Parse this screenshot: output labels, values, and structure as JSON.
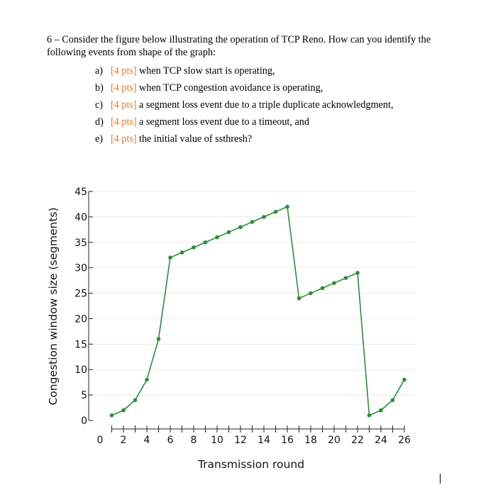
{
  "question": {
    "line1": "6 – Consider the figure below illustrating the operation of TCP Reno.  How can you identify the",
    "line2": "following events from shape of the graph:",
    "items": [
      {
        "letter": "a)",
        "points": "[4 pts]",
        "text": "when TCP slow start is operating,"
      },
      {
        "letter": "b)",
        "points": "[4 pts]",
        "text": "when TCP congestion avoidance is operating,"
      },
      {
        "letter": "c)",
        "points": "[4 pts]",
        "text": "a segment loss event due to a triple duplicate acknowledgment,"
      },
      {
        "letter": "d)",
        "points": "[4 pts]",
        "text": "a segment loss event due to a timeout, and"
      },
      {
        "letter": "e)",
        "points": "[4 pts]",
        "text": "the initial value of ssthresh?"
      }
    ]
  },
  "colors": {
    "accent": "#e07a2a",
    "series": "#2e8b3a",
    "axis": "#222222",
    "grid": "#dddddd"
  },
  "chart_data": {
    "type": "line",
    "title": "",
    "xlabel": "Transmission round",
    "ylabel": "Congestion window size (segments)",
    "xlim": [
      0,
      26
    ],
    "ylim": [
      0,
      45
    ],
    "xticks": [
      0,
      2,
      4,
      6,
      8,
      10,
      12,
      14,
      16,
      18,
      20,
      22,
      24,
      26
    ],
    "yticks": [
      0,
      5,
      10,
      15,
      20,
      25,
      30,
      35,
      40,
      45
    ],
    "grid": true,
    "series": [
      {
        "x": [
          1,
          2,
          3,
          4,
          5,
          6,
          7,
          8,
          9,
          10,
          11,
          12,
          13,
          14,
          15,
          16,
          17,
          18,
          19,
          20,
          21,
          22,
          23,
          24,
          25,
          26
        ],
        "y": [
          1,
          2,
          4,
          8,
          16,
          32,
          33,
          34,
          35,
          36,
          37,
          38,
          39,
          40,
          41,
          42,
          24,
          25,
          26,
          27,
          28,
          29,
          1,
          2,
          4,
          8
        ]
      }
    ]
  }
}
